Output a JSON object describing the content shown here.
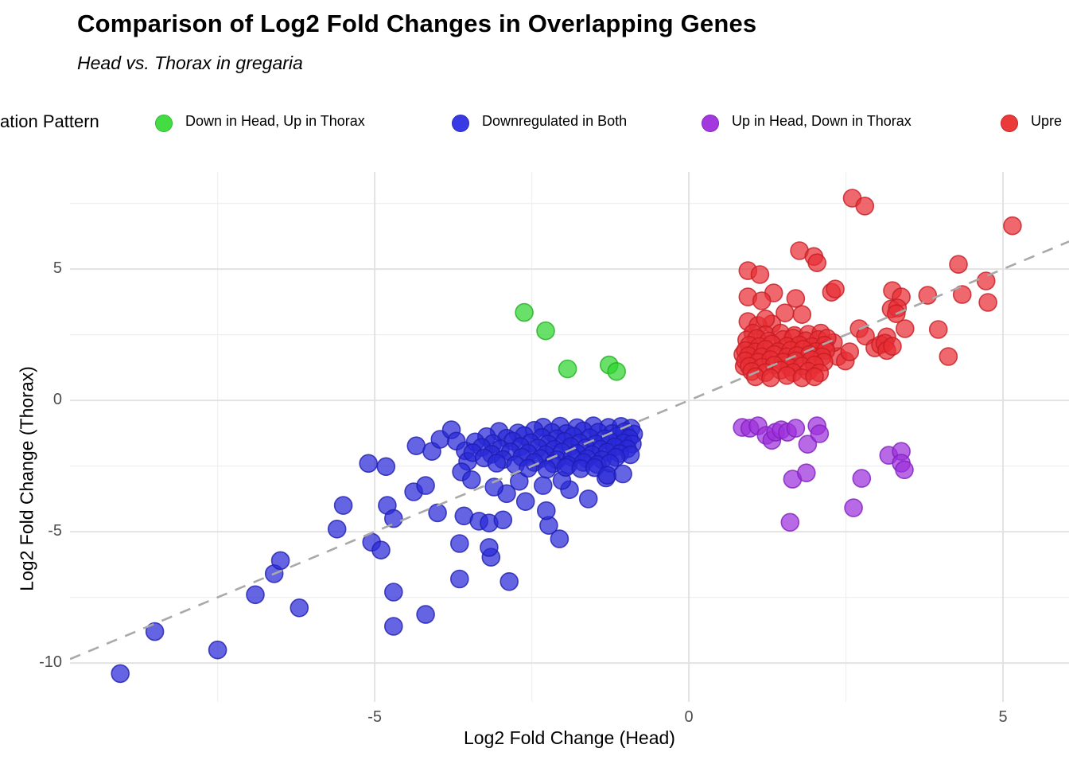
{
  "header": {
    "title": "Comparison of Log2 Fold Changes in Overlapping Genes",
    "subtitle": "Head vs. Thorax in gregaria"
  },
  "legend": {
    "title_visible": "ation Pattern",
    "title_truncated_at_left_edge": true,
    "items": [
      {
        "label": "Down in Head, Up in Thorax",
        "color": "#43dd43"
      },
      {
        "label": "Downregulated in Both",
        "color": "#3a3ae4"
      },
      {
        "label": "Up in Head, Down in Thorax",
        "color": "#a238dd"
      },
      {
        "label": "Upre",
        "color": "#ea3a3a",
        "label_truncated_at_right_edge": true
      }
    ]
  },
  "axes": {
    "x_title": "Log2 Fold Change (Head)",
    "y_title": "Log2 Fold Change (Thorax)",
    "x_tick_labels": [
      "-5",
      "0",
      "5"
    ],
    "y_tick_labels": [
      "5",
      "0",
      "-5",
      "-10"
    ],
    "tick_color": "#4d4d4d",
    "major_grid_color": "#e2e2e2",
    "minor_grid_color": "#efefef"
  },
  "chart_data": {
    "type": "scatter",
    "title": "Comparison of Log2 Fold Changes in Overlapping Genes",
    "subtitle": "Head vs. Thorax in gregaria",
    "xlabel": "Log2 Fold Change (Head)",
    "ylabel": "Log2 Fold Change (Thorax)",
    "xlim": [
      -9.85,
      6.05
    ],
    "ylim": [
      -11.48,
      8.7
    ],
    "x_ticks": [
      -5,
      0,
      5
    ],
    "y_ticks": [
      -10,
      -5,
      0,
      5
    ],
    "x_minor_ticks": [
      -7.5,
      -2.5,
      2.5
    ],
    "y_minor_ticks": [
      -7.5,
      -2.5,
      2.5,
      7.5
    ],
    "grid": true,
    "legend_position": "top",
    "identity_line": {
      "slope": 1,
      "intercept": 0,
      "style": "dashed",
      "color": "#a9a9a9"
    },
    "point_radius_px": 11,
    "series": [
      {
        "name": "Down in Head, Up in Thorax",
        "color": "#2fd42f",
        "stroke": "#1faf1f",
        "points": [
          [
            -2.62,
            3.35
          ],
          [
            -2.28,
            2.65
          ],
          [
            -1.93,
            1.2
          ],
          [
            -1.27,
            1.35
          ],
          [
            -1.15,
            1.1
          ]
        ]
      },
      {
        "name": "Downregulated in Both",
        "color": "#2a2ad8",
        "stroke": "#1d1db0",
        "points": [
          [
            -9.05,
            -10.4
          ],
          [
            -7.5,
            -9.5
          ],
          [
            -8.5,
            -8.8
          ],
          [
            -6.9,
            -7.4
          ],
          [
            -6.6,
            -6.6
          ],
          [
            -6.5,
            -6.1
          ],
          [
            -6.2,
            -7.9
          ],
          [
            -5.6,
            -4.9
          ],
          [
            -5.5,
            -4.0
          ],
          [
            -5.05,
            -5.4
          ],
          [
            -4.9,
            -5.7
          ],
          [
            -4.8,
            -4.0
          ],
          [
            -4.7,
            -4.5
          ],
          [
            -4.7,
            -7.3
          ],
          [
            -4.7,
            -8.6
          ],
          [
            -4.19,
            -8.15
          ],
          [
            -5.1,
            -2.4
          ],
          [
            -4.82,
            -2.52
          ],
          [
            -4.38,
            -3.48
          ],
          [
            -4.19,
            -3.24
          ],
          [
            -4.0,
            -4.28
          ],
          [
            -3.65,
            -6.8
          ],
          [
            -2.86,
            -6.9
          ],
          [
            -3.15,
            -5.97
          ],
          [
            -3.18,
            -5.6
          ],
          [
            -3.65,
            -5.45
          ],
          [
            -3.58,
            -4.4
          ],
          [
            -3.34,
            -4.6
          ],
          [
            -3.18,
            -4.67
          ],
          [
            -2.96,
            -4.55
          ],
          [
            -2.23,
            -4.76
          ],
          [
            -2.27,
            -4.2
          ],
          [
            -2.06,
            -5.27
          ],
          [
            -2.6,
            -3.85
          ],
          [
            -2.32,
            -3.24
          ],
          [
            -2.9,
            -3.55
          ],
          [
            -3.1,
            -3.3
          ],
          [
            -2.7,
            -3.08
          ],
          [
            -1.9,
            -3.4
          ],
          [
            -1.6,
            -3.75
          ],
          [
            -2.02,
            -3.05
          ],
          [
            -1.32,
            -2.95
          ],
          [
            -4.34,
            -1.73
          ],
          [
            -4.09,
            -1.94
          ],
          [
            -3.96,
            -1.48
          ],
          [
            -3.78,
            -1.12
          ],
          [
            -3.7,
            -1.55
          ],
          [
            -3.56,
            -1.92
          ],
          [
            -3.52,
            -2.32
          ],
          [
            -3.62,
            -2.72
          ],
          [
            -3.46,
            -3.02
          ],
          [
            -2.32,
            -1.02
          ],
          [
            -2.05,
            -0.98
          ],
          [
            -1.78,
            -1.04
          ],
          [
            -1.52,
            -0.97
          ],
          [
            -1.28,
            -1.03
          ],
          [
            -1.08,
            -0.99
          ],
          [
            -0.92,
            -1.06
          ],
          [
            -3.02,
            -1.18
          ],
          [
            -2.72,
            -1.24
          ],
          [
            -2.46,
            -1.14
          ],
          [
            -2.18,
            -1.22
          ],
          [
            -1.95,
            -1.26
          ],
          [
            -1.68,
            -1.16
          ],
          [
            -1.44,
            -1.21
          ],
          [
            -1.22,
            -1.26
          ],
          [
            -1.02,
            -1.19
          ],
          [
            -0.88,
            -1.28
          ],
          [
            -3.22,
            -1.38
          ],
          [
            -2.9,
            -1.44
          ],
          [
            -2.62,
            -1.34
          ],
          [
            -2.34,
            -1.41
          ],
          [
            -2.1,
            -1.46
          ],
          [
            -1.84,
            -1.36
          ],
          [
            -1.58,
            -1.42
          ],
          [
            -1.34,
            -1.46
          ],
          [
            -1.14,
            -1.36
          ],
          [
            -0.95,
            -1.44
          ],
          [
            -3.4,
            -1.58
          ],
          [
            -3.12,
            -1.64
          ],
          [
            -2.8,
            -1.55
          ],
          [
            -2.52,
            -1.61
          ],
          [
            -2.24,
            -1.66
          ],
          [
            -1.98,
            -1.56
          ],
          [
            -1.74,
            -1.62
          ],
          [
            -1.48,
            -1.66
          ],
          [
            -1.26,
            -1.56
          ],
          [
            -1.04,
            -1.62
          ],
          [
            -0.9,
            -1.66
          ],
          [
            -3.3,
            -1.79
          ],
          [
            -3.0,
            -1.85
          ],
          [
            -2.68,
            -1.76
          ],
          [
            -2.4,
            -1.81
          ],
          [
            -2.14,
            -1.86
          ],
          [
            -1.88,
            -1.76
          ],
          [
            -1.64,
            -1.81
          ],
          [
            -1.4,
            -1.86
          ],
          [
            -1.18,
            -1.77
          ],
          [
            -0.98,
            -1.84
          ],
          [
            -3.44,
            -1.99
          ],
          [
            -3.14,
            -2.05
          ],
          [
            -2.84,
            -1.96
          ],
          [
            -2.56,
            -2.01
          ],
          [
            -2.28,
            -2.06
          ],
          [
            -2.02,
            -1.96
          ],
          [
            -1.78,
            -2.02
          ],
          [
            -1.54,
            -2.06
          ],
          [
            -1.3,
            -1.97
          ],
          [
            -1.1,
            -2.02
          ],
          [
            -0.93,
            -2.07
          ],
          [
            -3.26,
            -2.19
          ],
          [
            -2.96,
            -2.25
          ],
          [
            -2.66,
            -2.16
          ],
          [
            -2.36,
            -2.21
          ],
          [
            -2.1,
            -2.26
          ],
          [
            -1.86,
            -2.16
          ],
          [
            -1.62,
            -2.22
          ],
          [
            -1.38,
            -2.26
          ],
          [
            -1.16,
            -2.17
          ],
          [
            -3.06,
            -2.39
          ],
          [
            -2.76,
            -2.45
          ],
          [
            -2.46,
            -2.36
          ],
          [
            -2.16,
            -2.41
          ],
          [
            -1.92,
            -2.46
          ],
          [
            -1.68,
            -2.36
          ],
          [
            -1.46,
            -2.44
          ],
          [
            -1.26,
            -2.39
          ],
          [
            -2.56,
            -2.58
          ],
          [
            -2.26,
            -2.62
          ],
          [
            -1.96,
            -2.55
          ],
          [
            -1.72,
            -2.6
          ],
          [
            -1.5,
            -2.56
          ],
          [
            -1.3,
            -2.85
          ],
          [
            -1.05,
            -2.8
          ]
        ]
      },
      {
        "name": "Up in Head, Down in Thorax",
        "color": "#9c2fdb",
        "stroke": "#7e1fbb",
        "points": [
          [
            0.85,
            -1.03
          ],
          [
            0.97,
            -1.06
          ],
          [
            1.1,
            -0.97
          ],
          [
            1.23,
            -1.33
          ],
          [
            1.32,
            -1.52
          ],
          [
            1.38,
            -1.21
          ],
          [
            1.47,
            -1.12
          ],
          [
            1.57,
            -1.21
          ],
          [
            1.7,
            -1.06
          ],
          [
            1.89,
            -1.67
          ],
          [
            2.04,
            -0.97
          ],
          [
            2.08,
            -1.27
          ],
          [
            1.65,
            -3.0
          ],
          [
            1.87,
            -2.76
          ],
          [
            2.75,
            -2.97
          ],
          [
            3.18,
            -2.09
          ],
          [
            3.38,
            -1.94
          ],
          [
            3.38,
            -2.39
          ],
          [
            3.43,
            -2.64
          ],
          [
            2.62,
            -4.09
          ],
          [
            1.61,
            -4.64
          ]
        ]
      },
      {
        "name": "Upre",
        "color": "#e82e35",
        "stroke": "#c41c22",
        "points": [
          [
            2.6,
            7.7
          ],
          [
            2.8,
            7.4
          ],
          [
            5.15,
            6.65
          ],
          [
            1.76,
            5.7
          ],
          [
            1.99,
            5.48
          ],
          [
            2.04,
            5.24
          ],
          [
            0.94,
            4.94
          ],
          [
            1.13,
            4.79
          ],
          [
            4.29,
            5.18
          ],
          [
            4.73,
            4.55
          ],
          [
            4.35,
            4.03
          ],
          [
            3.8,
            4.0
          ],
          [
            4.76,
            3.73
          ],
          [
            3.24,
            4.18
          ],
          [
            3.38,
            3.94
          ],
          [
            3.22,
            3.48
          ],
          [
            3.32,
            3.52
          ],
          [
            3.3,
            3.3
          ],
          [
            2.27,
            4.12
          ],
          [
            2.33,
            4.24
          ],
          [
            1.35,
            4.09
          ],
          [
            0.94,
            3.94
          ],
          [
            1.16,
            3.79
          ],
          [
            1.7,
            3.88
          ],
          [
            1.53,
            3.33
          ],
          [
            1.8,
            3.27
          ],
          [
            1.32,
            2.91
          ],
          [
            0.94,
            3.0
          ],
          [
            1.1,
            2.85
          ],
          [
            1.22,
            3.1
          ],
          [
            3.97,
            2.7
          ],
          [
            4.13,
            1.67
          ],
          [
            3.44,
            2.73
          ],
          [
            3.15,
            2.42
          ],
          [
            2.71,
            2.73
          ],
          [
            2.81,
            2.45
          ],
          [
            2.96,
            2.0
          ],
          [
            3.05,
            2.12
          ],
          [
            3.12,
            2.18
          ],
          [
            3.15,
            1.9
          ],
          [
            3.24,
            2.06
          ],
          [
            2.37,
            1.67
          ],
          [
            2.49,
            1.5
          ],
          [
            2.56,
            1.85
          ],
          [
            2.3,
            2.2
          ],
          [
            0.88,
            1.3
          ],
          [
            0.86,
            1.75
          ],
          [
            1.02,
            2.56
          ],
          [
            1.22,
            2.5
          ],
          [
            1.46,
            2.56
          ],
          [
            1.68,
            2.47
          ],
          [
            1.9,
            2.52
          ],
          [
            2.1,
            2.56
          ],
          [
            0.92,
            2.3
          ],
          [
            1.08,
            2.36
          ],
          [
            1.27,
            2.26
          ],
          [
            1.5,
            2.32
          ],
          [
            1.66,
            2.37
          ],
          [
            1.86,
            2.27
          ],
          [
            2.06,
            2.32
          ],
          [
            2.2,
            2.37
          ],
          [
            0.96,
            2.1
          ],
          [
            1.12,
            2.05
          ],
          [
            1.32,
            2.15
          ],
          [
            1.56,
            2.06
          ],
          [
            1.76,
            2.11
          ],
          [
            1.96,
            2.05
          ],
          [
            2.16,
            2.1
          ],
          [
            0.9,
            1.9
          ],
          [
            1.06,
            1.85
          ],
          [
            1.22,
            1.95
          ],
          [
            1.42,
            1.86
          ],
          [
            1.62,
            1.91
          ],
          [
            1.82,
            1.95
          ],
          [
            2.02,
            1.86
          ],
          [
            2.18,
            1.9
          ],
          [
            0.95,
            1.7
          ],
          [
            1.16,
            1.66
          ],
          [
            1.36,
            1.75
          ],
          [
            1.56,
            1.66
          ],
          [
            1.72,
            1.71
          ],
          [
            1.92,
            1.75
          ],
          [
            2.12,
            1.66
          ],
          [
            0.9,
            1.5
          ],
          [
            1.1,
            1.46
          ],
          [
            1.3,
            1.55
          ],
          [
            1.5,
            1.46
          ],
          [
            1.7,
            1.51
          ],
          [
            1.95,
            1.55
          ],
          [
            2.15,
            1.46
          ],
          [
            0.96,
            1.3
          ],
          [
            1.16,
            1.26
          ],
          [
            1.36,
            1.35
          ],
          [
            1.6,
            1.26
          ],
          [
            1.8,
            1.31
          ],
          [
            2.0,
            1.35
          ],
          [
            1.0,
            1.1
          ],
          [
            1.22,
            1.06
          ],
          [
            1.46,
            1.15
          ],
          [
            1.66,
            1.06
          ],
          [
            1.9,
            1.11
          ],
          [
            2.08,
            1.05
          ],
          [
            1.06,
            0.9
          ],
          [
            1.3,
            0.86
          ],
          [
            1.56,
            0.95
          ],
          [
            1.8,
            0.86
          ],
          [
            2.0,
            0.9
          ]
        ]
      }
    ]
  }
}
